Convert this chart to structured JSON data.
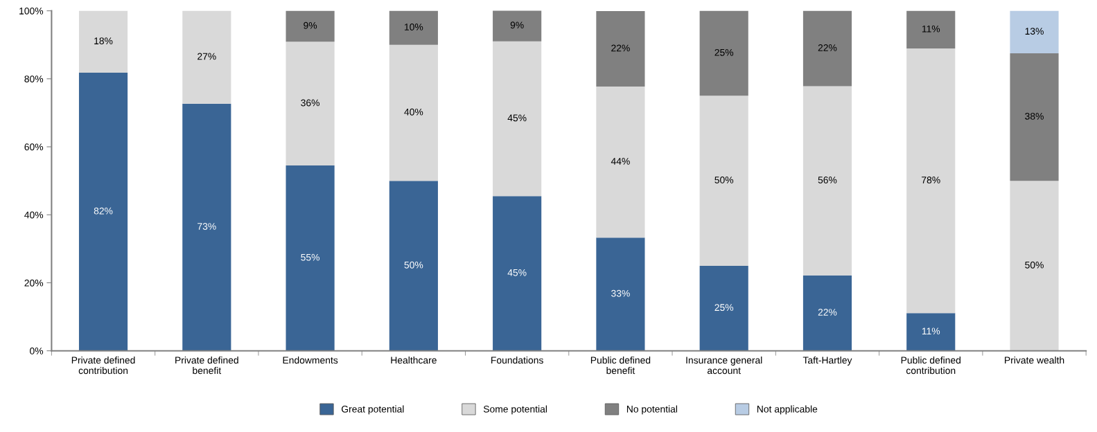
{
  "chart_data": {
    "type": "bar",
    "stacked": true,
    "grid": false,
    "legend": "bottom",
    "categories": [
      "Private defined\ncontribution",
      "Private defined\nbenefit",
      "Endowments",
      "Healthcare",
      "Foundations",
      "Public defined\nbenefit",
      "Insurance general\naccount",
      "Taft-Hartley",
      "Public defined\ncontribution",
      "Private wealth"
    ],
    "series": [
      {
        "name": "Great potential",
        "color": "#3a6595",
        "values": [
          81.8,
          72.7,
          54.5,
          50,
          45.5,
          33.3,
          25,
          22.2,
          11.1,
          null
        ],
        "value_labels": [
          "82%",
          "73%",
          "55%",
          "50%",
          "45%",
          "33%",
          "25%",
          "22%",
          "11%",
          null
        ]
      },
      {
        "name": "Some potential",
        "color": "#d9d9d9",
        "values": [
          18.2,
          27.3,
          36.4,
          40,
          45.5,
          44.4,
          50,
          55.6,
          77.8,
          50
        ],
        "value_labels": [
          "18%",
          "27%",
          "36%",
          "40%",
          "45%",
          "44%",
          "50%",
          "56%",
          "78%",
          "50%"
        ]
      },
      {
        "name": "No potential",
        "color": "#808080",
        "values": [
          null,
          null,
          9.1,
          10,
          9.1,
          22.2,
          25,
          22.2,
          11.1,
          37.5
        ],
        "value_labels": [
          null,
          null,
          "9%",
          "10%",
          "9%",
          "22%",
          "25%",
          "22%",
          "11%",
          "38%"
        ]
      },
      {
        "name": "Not applicable",
        "color": "#b8cce4",
        "values": [
          null,
          null,
          null,
          null,
          null,
          null,
          null,
          null,
          null,
          12.5
        ],
        "value_labels": [
          null,
          null,
          null,
          null,
          null,
          null,
          null,
          null,
          null,
          "13%"
        ]
      }
    ],
    "ylim": [
      0,
      100
    ],
    "yticks": [
      {
        "value": 0,
        "label": "0%"
      },
      {
        "value": 20,
        "label": "20%"
      },
      {
        "value": 40,
        "label": "40%"
      },
      {
        "value": 60,
        "label": "60%"
      },
      {
        "value": 80,
        "label": "80%"
      },
      {
        "value": 100,
        "label": "100%"
      }
    ]
  }
}
